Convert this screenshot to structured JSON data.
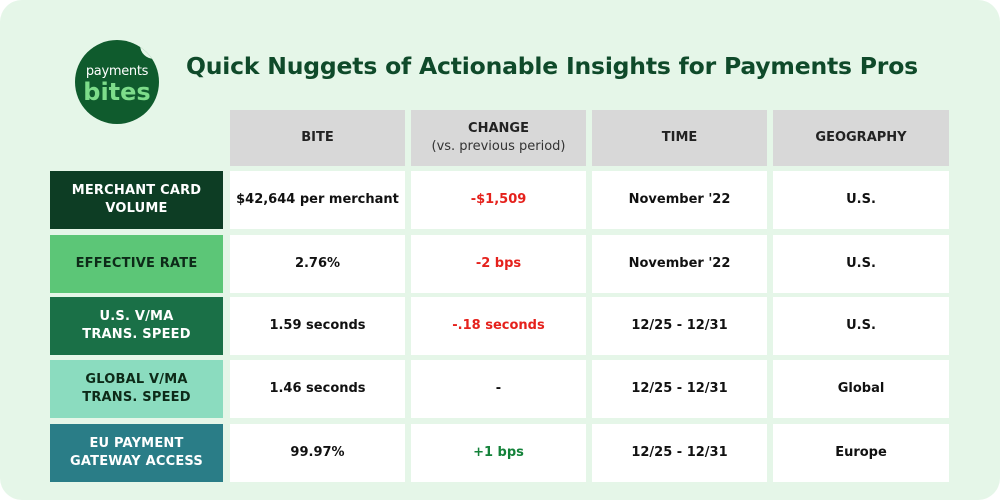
{
  "logo": {
    "line1": "payments",
    "line2": "bites"
  },
  "title": "Quick Nuggets of Actionable Insights for Payments Pros",
  "columns": [
    {
      "label": "BITE",
      "sublabel": ""
    },
    {
      "label": "CHANGE",
      "sublabel": "(vs. previous period)"
    },
    {
      "label": "TIME",
      "sublabel": ""
    },
    {
      "label": "GEOGRAPHY",
      "sublabel": ""
    }
  ],
  "rows": [
    {
      "header_line1": "MERCHANT CARD",
      "header_line2": "VOLUME",
      "header_color": "#0d3d24",
      "bite": "$42,644 per merchant",
      "change": "-$1,509",
      "change_type": "negative",
      "time": "November '22",
      "geography": "U.S."
    },
    {
      "header_line1": "EFFECTIVE RATE",
      "header_line2": "",
      "header_color": "#5cc677",
      "bite": "2.76%",
      "change": "-2 bps",
      "change_type": "negative",
      "time": "November '22",
      "geography": "U.S."
    },
    {
      "header_line1": "U.S. V/MA",
      "header_line2": "TRANS. SPEED",
      "header_color": "#1a7047",
      "bite": "1.59 seconds",
      "change": "-.18 seconds",
      "change_type": "negative",
      "time": "12/25 - 12/31",
      "geography": "U.S."
    },
    {
      "header_line1": "GLOBAL V/MA",
      "header_line2": "TRANS. SPEED",
      "header_color": "#8bdcbf",
      "bite": "1.46 seconds",
      "change": "-",
      "change_type": "neutral",
      "time": "12/25 - 12/31",
      "geography": "Global"
    },
    {
      "header_line1": "EU PAYMENT",
      "header_line2": "GATEWAY ACCESS",
      "header_color": "#2a7d87",
      "bite": "99.97%",
      "change": "+1 bps",
      "change_type": "positive",
      "time": "12/25 - 12/31",
      "geography": "Europe"
    }
  ]
}
